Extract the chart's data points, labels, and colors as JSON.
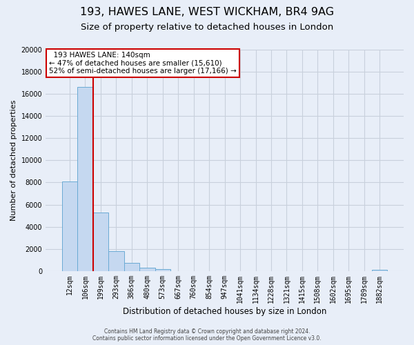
{
  "title1": "193, HAWES LANE, WEST WICKHAM, BR4 9AG",
  "title2": "Size of property relative to detached houses in London",
  "xlabel": "Distribution of detached houses by size in London",
  "ylabel": "Number of detached properties",
  "bar_labels": [
    "12sqm",
    "106sqm",
    "199sqm",
    "293sqm",
    "386sqm",
    "480sqm",
    "573sqm",
    "667sqm",
    "760sqm",
    "854sqm",
    "947sqm",
    "1041sqm",
    "1134sqm",
    "1228sqm",
    "1321sqm",
    "1415sqm",
    "1508sqm",
    "1602sqm",
    "1695sqm",
    "1789sqm",
    "1882sqm"
  ],
  "bar_heights": [
    8100,
    16600,
    5300,
    1800,
    750,
    310,
    210,
    0,
    0,
    0,
    0,
    0,
    0,
    0,
    0,
    0,
    0,
    0,
    0,
    0,
    150
  ],
  "bar_color": "#c5d8f0",
  "bar_edge_color": "#6aaad4",
  "vline_color": "#cc0000",
  "annotation_title": "193 HAWES LANE: 140sqm",
  "annotation_line1": "← 47% of detached houses are smaller (15,610)",
  "annotation_line2": "52% of semi-detached houses are larger (17,166) →",
  "annotation_box_facecolor": "white",
  "annotation_box_edgecolor": "#cc0000",
  "ylim_max": 20000,
  "ytick_step": 2000,
  "footer1": "Contains HM Land Registry data © Crown copyright and database right 2024.",
  "footer2": "Contains public sector information licensed under the Open Government Licence v3.0.",
  "bg_color": "#e8eef8",
  "grid_color": "#c8d0dc",
  "title1_fontsize": 11.5,
  "title2_fontsize": 9.5,
  "xlabel_fontsize": 8.5,
  "ylabel_fontsize": 8,
  "tick_fontsize": 7,
  "annot_fontsize": 7.5,
  "footer_fontsize": 5.5
}
